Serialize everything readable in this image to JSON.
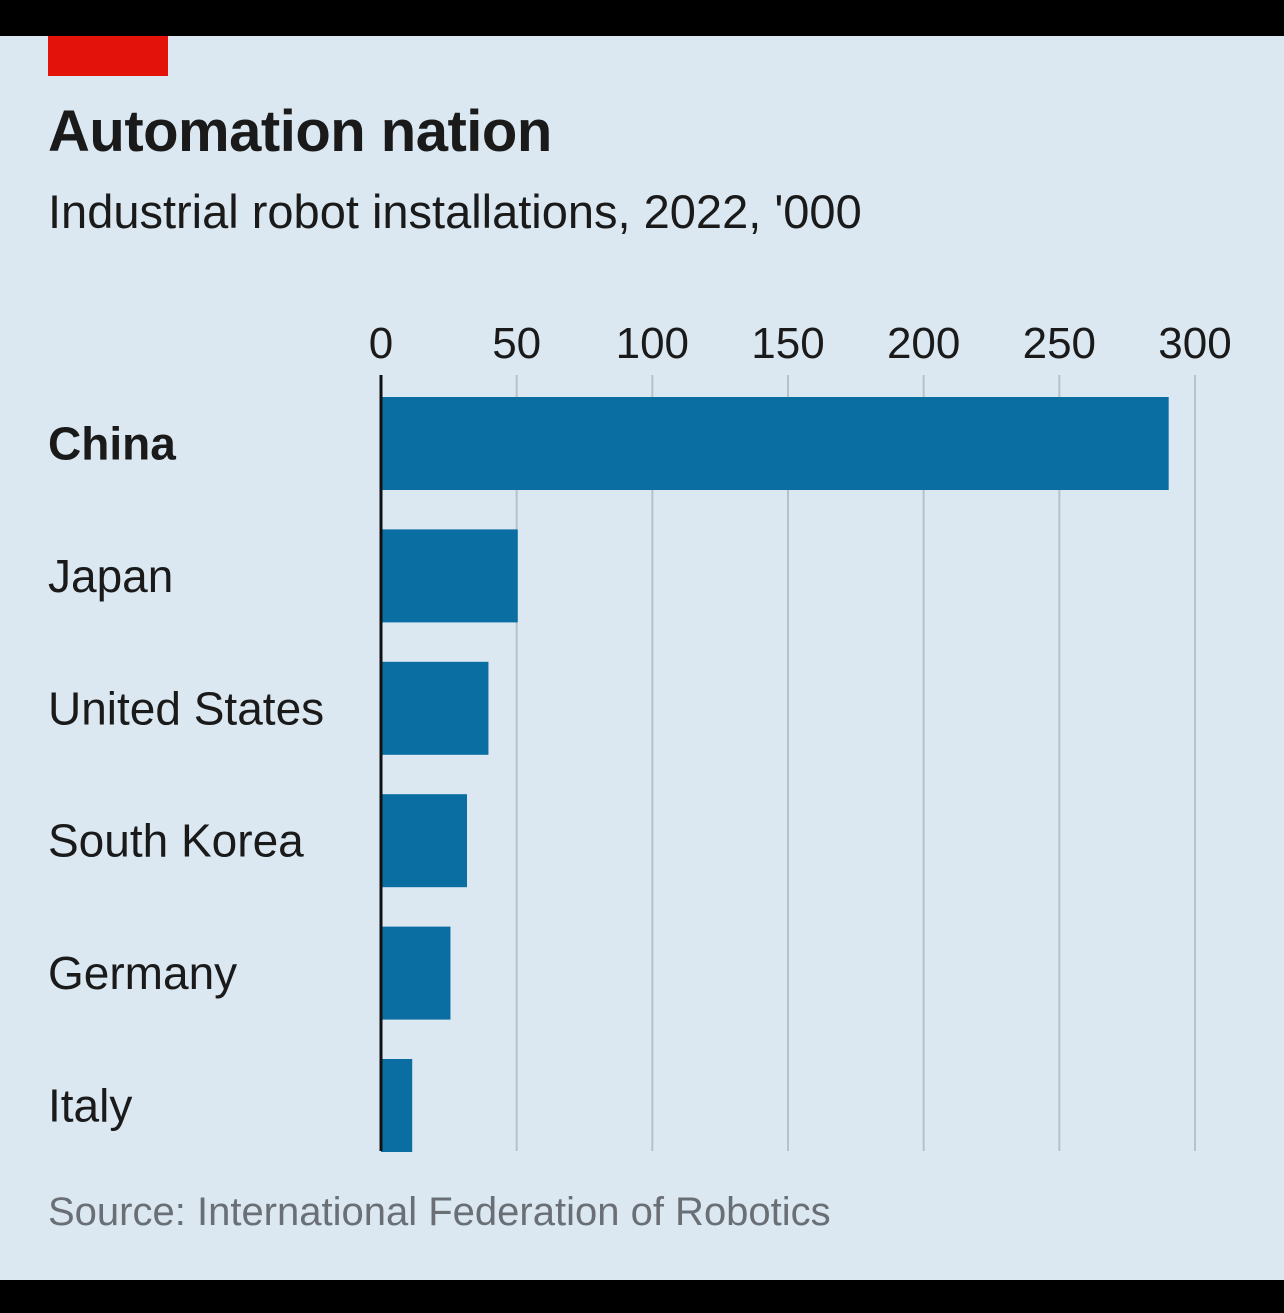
{
  "chart_data": {
    "type": "bar",
    "orientation": "horizontal",
    "title": "Automation nation",
    "subtitle": "Industrial robot installations, 2022, '000",
    "source": "Source: International Federation of Robotics",
    "categories": [
      "China",
      "Japan",
      "United States",
      "South Korea",
      "Germany",
      "Italy"
    ],
    "highlighted_category": "China",
    "values": [
      290.3,
      50.4,
      39.6,
      31.7,
      25.6,
      11.5
    ],
    "xlim": [
      0,
      300
    ],
    "xticks": [
      0,
      50,
      100,
      150,
      200,
      250,
      300
    ],
    "grid": true,
    "colors": {
      "bar": "#0a6ea3",
      "background": "#dbe8f1",
      "accent": "#e3120b",
      "grid": "#b7c1c9"
    }
  }
}
